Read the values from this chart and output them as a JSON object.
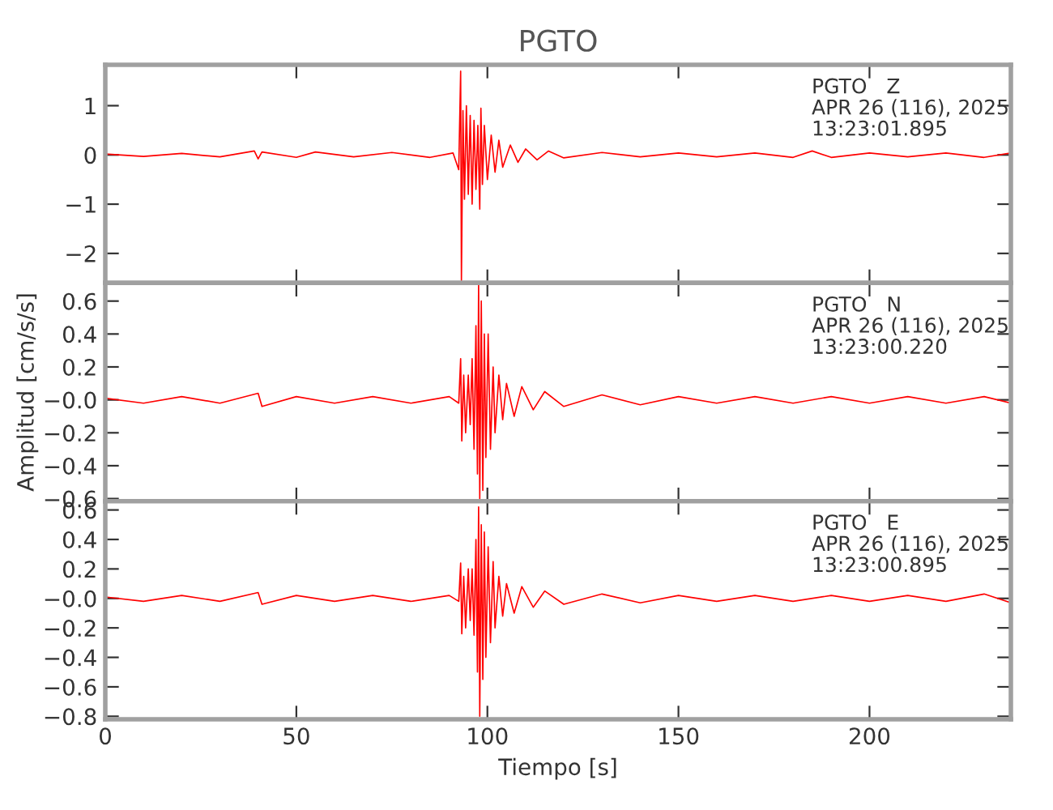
{
  "chart_data": [
    {
      "type": "line",
      "title": "PGTO",
      "xlim": [
        0,
        237
      ],
      "xticks": [
        0,
        50,
        100,
        150,
        200
      ],
      "ylim": [
        -2.6,
        1.83
      ],
      "yticks": [
        {
          "value": -2,
          "label": "−2"
        },
        {
          "value": -1,
          "label": "−1"
        },
        0,
        1
      ],
      "tick_labels": "y",
      "grid": false,
      "legend": false,
      "annotations": [
        "PGTO   Z\nAPR 26 (116), 2025\n13:23:01.895"
      ],
      "series": [
        {
          "color": "#ff0000",
          "x": [
            0,
            10,
            20,
            30,
            39,
            40,
            41,
            50,
            55,
            65,
            75,
            85,
            91,
            92.5,
            93,
            93.2,
            93.6,
            94,
            94.5,
            95,
            95.5,
            96,
            96.5,
            97,
            97.5,
            98,
            98.3,
            98.7,
            99.2,
            100,
            101,
            102,
            103,
            104,
            106,
            108,
            110,
            113,
            116,
            120,
            130,
            140,
            150,
            160,
            170,
            180,
            185,
            190,
            200,
            210,
            220,
            230,
            237
          ],
          "values": [
            0.02,
            -0.03,
            0.03,
            -0.04,
            0.08,
            -0.08,
            0.06,
            -0.05,
            0.06,
            -0.04,
            0.05,
            -0.05,
            0.04,
            -0.3,
            1.7,
            -2.55,
            0.9,
            -0.9,
            1.0,
            -0.8,
            0.8,
            -1.0,
            0.7,
            -0.7,
            0.6,
            -1.1,
            0.95,
            -0.6,
            0.6,
            -0.5,
            0.4,
            -0.35,
            0.3,
            -0.25,
            0.2,
            -0.15,
            0.12,
            -0.1,
            0.08,
            -0.06,
            0.05,
            -0.04,
            0.04,
            -0.04,
            0.04,
            -0.05,
            0.08,
            -0.05,
            0.04,
            -0.04,
            0.04,
            -0.05,
            0.04
          ]
        }
      ]
    },
    {
      "type": "line",
      "ylabel": "Amplitud [cm/s/s]",
      "xlim": [
        0,
        237
      ],
      "xticks": [
        0,
        50,
        100,
        150,
        200
      ],
      "ylim": [
        -0.615,
        0.71
      ],
      "yticks": [
        {
          "value": -0.6,
          "label": "−0.6"
        },
        {
          "value": -0.4,
          "label": "−0.4"
        },
        {
          "value": -0.2,
          "label": "−0.2"
        },
        {
          "value": 0,
          "label": "−0.0"
        },
        0.2,
        0.4,
        0.6
      ],
      "tick_labels": "y",
      "grid": false,
      "legend": false,
      "annotations": [
        "PGTO   N\nAPR 26 (116), 2025\n13:23:00.220"
      ],
      "series": [
        {
          "color": "#ff0000",
          "x": [
            0,
            10,
            20,
            30,
            40,
            41,
            50,
            60,
            70,
            80,
            90,
            92.5,
            93,
            93.3,
            93.8,
            94.3,
            95,
            95.5,
            96,
            96.5,
            97,
            97.4,
            97.7,
            98,
            98.4,
            98.8,
            99.2,
            99.6,
            100.2,
            100.8,
            101.5,
            102,
            103,
            104,
            105,
            107,
            109,
            112,
            115,
            120,
            130,
            140,
            150,
            160,
            170,
            180,
            190,
            200,
            210,
            220,
            230,
            237
          ],
          "values": [
            0.01,
            -0.02,
            0.02,
            -0.02,
            0.04,
            -0.04,
            0.02,
            -0.02,
            0.02,
            -0.02,
            0.02,
            -0.02,
            0.25,
            -0.25,
            0.15,
            -0.2,
            0.15,
            -0.15,
            0.25,
            -0.3,
            0.45,
            -0.45,
            0.7,
            -0.6,
            0.6,
            -0.55,
            0.4,
            -0.35,
            0.4,
            -0.3,
            0.2,
            -0.2,
            0.15,
            -0.12,
            0.1,
            -0.1,
            0.08,
            -0.06,
            0.05,
            -0.04,
            0.03,
            -0.03,
            0.02,
            -0.02,
            0.02,
            -0.02,
            0.02,
            -0.02,
            0.02,
            -0.02,
            0.02,
            -0.02
          ]
        }
      ]
    },
    {
      "type": "line",
      "xlabel": "Tiempo [s]",
      "xlim": [
        0,
        237
      ],
      "xticks": [
        0,
        50,
        100,
        150,
        200
      ],
      "ylim": [
        -0.82,
        0.66
      ],
      "yticks": [
        {
          "value": -0.8,
          "label": "−0.8"
        },
        {
          "value": -0.6,
          "label": "−0.6"
        },
        {
          "value": -0.4,
          "label": "−0.4"
        },
        {
          "value": -0.2,
          "label": "−0.2"
        },
        {
          "value": 0,
          "label": "−0.0"
        },
        0.2,
        0.4,
        0.6
      ],
      "grid": false,
      "legend": false,
      "annotations": [
        "PGTO   E\nAPR 26 (116), 2025\n13:23:00.895"
      ],
      "series": [
        {
          "color": "#ff0000",
          "x": [
            0,
            10,
            20,
            30,
            40,
            41,
            50,
            60,
            70,
            80,
            90,
            92.5,
            93,
            93.3,
            93.8,
            94.3,
            95,
            95.5,
            96,
            96.5,
            97,
            97.4,
            97.7,
            98,
            98.4,
            98.8,
            99.2,
            99.6,
            100.2,
            100.8,
            101.5,
            102,
            103,
            104,
            105,
            107,
            109,
            112,
            115,
            120,
            130,
            140,
            150,
            160,
            170,
            180,
            190,
            200,
            210,
            220,
            230,
            237
          ],
          "values": [
            0.01,
            -0.02,
            0.02,
            -0.02,
            0.04,
            -0.04,
            0.02,
            -0.02,
            0.02,
            -0.02,
            0.02,
            -0.02,
            0.24,
            -0.24,
            0.15,
            -0.2,
            0.2,
            -0.15,
            0.2,
            -0.25,
            0.4,
            -0.5,
            0.62,
            -0.8,
            0.5,
            -0.55,
            0.45,
            -0.4,
            0.35,
            -0.3,
            0.25,
            -0.2,
            0.15,
            -0.12,
            0.1,
            -0.1,
            0.08,
            -0.06,
            0.05,
            -0.04,
            0.03,
            -0.03,
            0.02,
            -0.02,
            0.02,
            -0.02,
            0.02,
            -0.02,
            0.02,
            -0.02,
            0.03,
            -0.03
          ]
        }
      ]
    }
  ]
}
